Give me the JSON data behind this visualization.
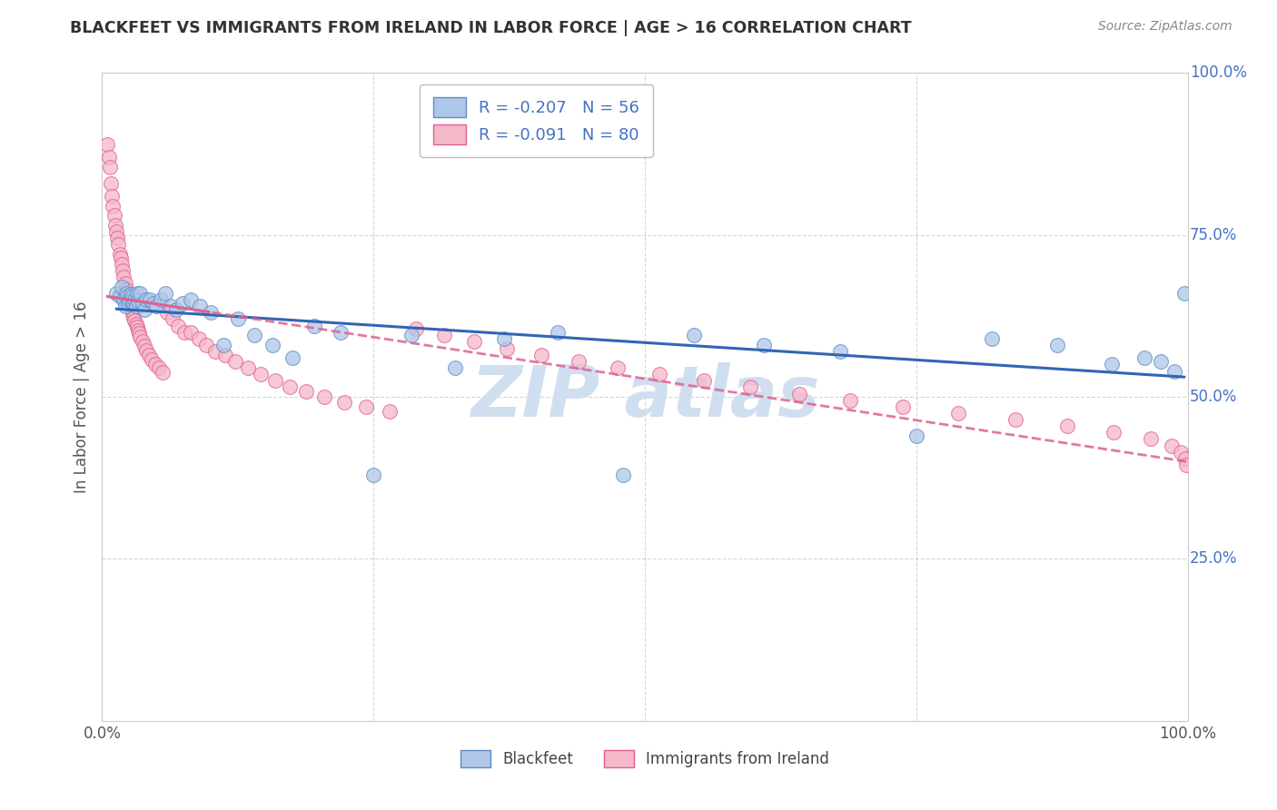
{
  "title": "BLACKFEET VS IMMIGRANTS FROM IRELAND IN LABOR FORCE | AGE > 16 CORRELATION CHART",
  "source": "Source: ZipAtlas.com",
  "ylabel": "In Labor Force | Age > 16",
  "xlim": [
    0.0,
    1.0
  ],
  "ylim": [
    0.0,
    1.0
  ],
  "x_tick_positions": [
    0.0,
    0.25,
    0.5,
    0.75,
    1.0
  ],
  "x_tick_labels": [
    "0.0%",
    "",
    "",
    "",
    "100.0%"
  ],
  "y_tick_positions": [
    0.25,
    0.5,
    0.75,
    1.0
  ],
  "y_tick_labels": [
    "25.0%",
    "50.0%",
    "75.0%",
    "100.0%"
  ],
  "legend_labels": [
    "Blackfeet",
    "Immigrants from Ireland"
  ],
  "blackfeet_R": -0.207,
  "blackfeet_N": 56,
  "ireland_R": -0.091,
  "ireland_N": 80,
  "blackfeet_color": "#aec6e8",
  "ireland_color": "#f5b8c8",
  "blackfeet_edge_color": "#5b8ec4",
  "ireland_edge_color": "#e06090",
  "blackfeet_line_color": "#3265b5",
  "ireland_line_color": "#e06090",
  "background_color": "#ffffff",
  "grid_color": "#cccccc",
  "watermark_color": "#d0dff0",
  "blackfeet_x": [
    0.013,
    0.016,
    0.018,
    0.02,
    0.021,
    0.022,
    0.023,
    0.024,
    0.025,
    0.026,
    0.027,
    0.028,
    0.029,
    0.03,
    0.031,
    0.032,
    0.033,
    0.035,
    0.037,
    0.039,
    0.041,
    0.044,
    0.047,
    0.05,
    0.054,
    0.058,
    0.063,
    0.068,
    0.074,
    0.082,
    0.09,
    0.1,
    0.112,
    0.125,
    0.14,
    0.157,
    0.175,
    0.195,
    0.22,
    0.25,
    0.285,
    0.325,
    0.37,
    0.42,
    0.48,
    0.545,
    0.61,
    0.68,
    0.75,
    0.82,
    0.88,
    0.93,
    0.96,
    0.975,
    0.988,
    0.997
  ],
  "blackfeet_y": [
    0.66,
    0.655,
    0.67,
    0.65,
    0.64,
    0.66,
    0.655,
    0.645,
    0.65,
    0.658,
    0.648,
    0.655,
    0.645,
    0.65,
    0.64,
    0.66,
    0.648,
    0.66,
    0.645,
    0.635,
    0.65,
    0.65,
    0.645,
    0.64,
    0.65,
    0.66,
    0.64,
    0.635,
    0.645,
    0.65,
    0.64,
    0.63,
    0.58,
    0.62,
    0.595,
    0.58,
    0.56,
    0.61,
    0.6,
    0.38,
    0.595,
    0.545,
    0.59,
    0.6,
    0.38,
    0.595,
    0.58,
    0.57,
    0.44,
    0.59,
    0.58,
    0.55,
    0.56,
    0.555,
    0.54,
    0.66
  ],
  "ireland_x": [
    0.005,
    0.006,
    0.007,
    0.008,
    0.009,
    0.01,
    0.011,
    0.012,
    0.013,
    0.014,
    0.015,
    0.016,
    0.017,
    0.018,
    0.019,
    0.02,
    0.021,
    0.022,
    0.023,
    0.024,
    0.025,
    0.026,
    0.027,
    0.028,
    0.029,
    0.03,
    0.031,
    0.032,
    0.033,
    0.034,
    0.035,
    0.037,
    0.039,
    0.041,
    0.043,
    0.046,
    0.049,
    0.052,
    0.056,
    0.06,
    0.065,
    0.07,
    0.076,
    0.082,
    0.089,
    0.096,
    0.104,
    0.113,
    0.123,
    0.134,
    0.146,
    0.159,
    0.173,
    0.188,
    0.205,
    0.223,
    0.243,
    0.265,
    0.289,
    0.315,
    0.343,
    0.373,
    0.405,
    0.439,
    0.475,
    0.513,
    0.554,
    0.597,
    0.642,
    0.689,
    0.738,
    0.789,
    0.841,
    0.889,
    0.932,
    0.966,
    0.985,
    0.994,
    0.998,
    0.999
  ],
  "ireland_y": [
    0.89,
    0.87,
    0.855,
    0.83,
    0.81,
    0.795,
    0.78,
    0.765,
    0.755,
    0.745,
    0.735,
    0.72,
    0.715,
    0.705,
    0.695,
    0.685,
    0.675,
    0.665,
    0.658,
    0.65,
    0.645,
    0.64,
    0.635,
    0.628,
    0.622,
    0.618,
    0.612,
    0.608,
    0.602,
    0.598,
    0.592,
    0.585,
    0.578,
    0.572,
    0.565,
    0.558,
    0.551,
    0.545,
    0.538,
    0.63,
    0.62,
    0.61,
    0.6,
    0.6,
    0.59,
    0.58,
    0.57,
    0.565,
    0.555,
    0.545,
    0.535,
    0.525,
    0.515,
    0.508,
    0.5,
    0.492,
    0.485,
    0.478,
    0.605,
    0.595,
    0.585,
    0.575,
    0.565,
    0.555,
    0.545,
    0.535,
    0.525,
    0.515,
    0.505,
    0.495,
    0.485,
    0.475,
    0.465,
    0.455,
    0.445,
    0.435,
    0.425,
    0.415,
    0.405,
    0.395
  ]
}
